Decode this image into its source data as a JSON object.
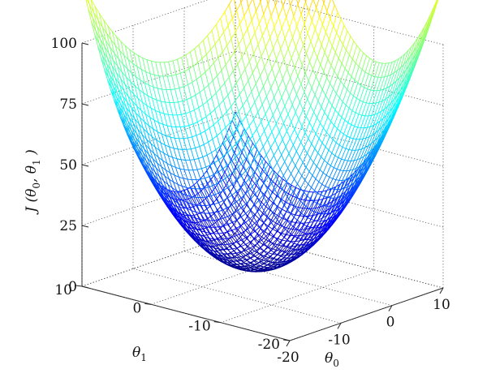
{
  "chart_data": {
    "type": "surface-mesh",
    "function": "J(theta0, theta1) = (theta0^2 + theta1^2) / 4",
    "zlabel": "J (θ0, θ1)",
    "xlabel": "θ0",
    "ylabel": "θ1",
    "x": {
      "symbol": "θ",
      "sub": "0",
      "range": [
        -20,
        10
      ],
      "ticks": [
        -20,
        -10,
        0,
        10
      ],
      "tick_labels": [
        "-20",
        "-10",
        "0",
        "10"
      ]
    },
    "y": {
      "symbol": "θ",
      "sub": "1",
      "range": [
        -20,
        10
      ],
      "ticks": [
        -20,
        -10,
        0,
        10
      ],
      "tick_labels": [
        "-20",
        "-10",
        "0",
        "10"
      ]
    },
    "z": {
      "range": [
        0,
        100
      ],
      "ticks": [
        0,
        25,
        50,
        75,
        100
      ],
      "tick_labels": [
        "0",
        "25",
        "50",
        "75",
        "100"
      ]
    },
    "colormap": "jet",
    "grid": true,
    "mesh_resolution": 48
  },
  "zlabel_parts": {
    "prefix": "J (",
    "t0": "θ",
    "s0": "0",
    "comma": ", ",
    "t1": "θ",
    "s1": "1",
    "suffix": " )"
  }
}
